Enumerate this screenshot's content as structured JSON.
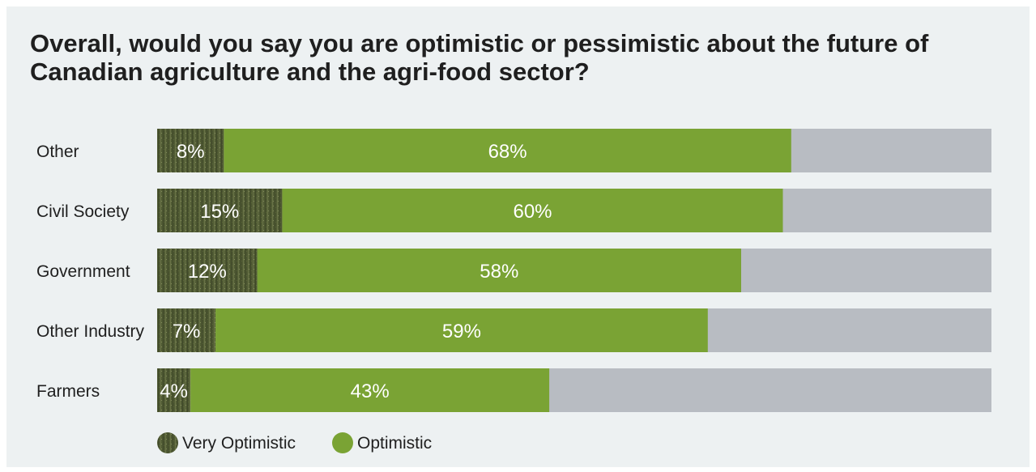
{
  "chart_data": {
    "type": "bar",
    "orientation": "horizontal",
    "stacked": true,
    "title": "Overall, would you say you are optimistic or pessimistic about the future of Canadian agriculture and the agri-food sector?",
    "categories": [
      "Other",
      "Civil Society",
      "Government",
      "Other Industry",
      "Farmers"
    ],
    "series": [
      {
        "name": "Very Optimistic",
        "values": [
          8,
          15,
          12,
          7,
          4
        ],
        "labels": [
          "8%",
          "15%",
          "12%",
          "7%",
          "4%"
        ],
        "color": "#4f5a33"
      },
      {
        "name": "Optimistic",
        "values": [
          68,
          60,
          58,
          59,
          43
        ],
        "labels": [
          "68%",
          "60%",
          "58%",
          "59%",
          "43%"
        ],
        "color": "#7aa334"
      }
    ],
    "remainder_color": "#b8bcc2",
    "xlim": [
      0,
      100
    ],
    "legend_position": "bottom-left",
    "grid": false
  }
}
